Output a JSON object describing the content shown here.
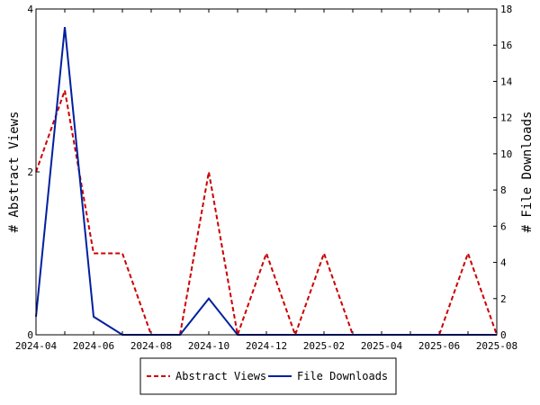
{
  "chart_data": {
    "type": "line",
    "x": [
      "2024-04",
      "2024-05",
      "2024-06",
      "2024-07",
      "2024-08",
      "2024-09",
      "2024-10",
      "2024-11",
      "2024-12",
      "2025-01",
      "2025-02",
      "2025-03",
      "2025-04",
      "2025-05",
      "2025-06",
      "2025-07",
      "2025-08"
    ],
    "x_tick_labels": [
      "2024-04",
      "2024-06",
      "2024-08",
      "2024-10",
      "2024-12",
      "2025-02",
      "2025-04",
      "2025-06",
      "2025-08"
    ],
    "series": [
      {
        "name": "Abstract Views",
        "axis": "left",
        "color": "#cc0000",
        "dash": true,
        "values": [
          2,
          3,
          1,
          1,
          0,
          0,
          2,
          0,
          1,
          0,
          1,
          0,
          0,
          0,
          0,
          1,
          0
        ]
      },
      {
        "name": "File Downloads",
        "axis": "right",
        "color": "#00209f",
        "dash": false,
        "values": [
          1,
          17,
          1,
          0,
          0,
          0,
          2,
          0,
          0,
          0,
          0,
          0,
          0,
          0,
          0,
          0,
          0
        ]
      }
    ],
    "ylabel": "# Abstract Views",
    "y2label": "# File Downloads",
    "ylim": [
      0,
      4
    ],
    "y2lim": [
      0,
      18
    ],
    "y_ticks": [
      0,
      2,
      4
    ],
    "y2_ticks": [
      0,
      2,
      4,
      6,
      8,
      10,
      12,
      14,
      16,
      18
    ],
    "grid": false,
    "legend_position": "bottom"
  }
}
